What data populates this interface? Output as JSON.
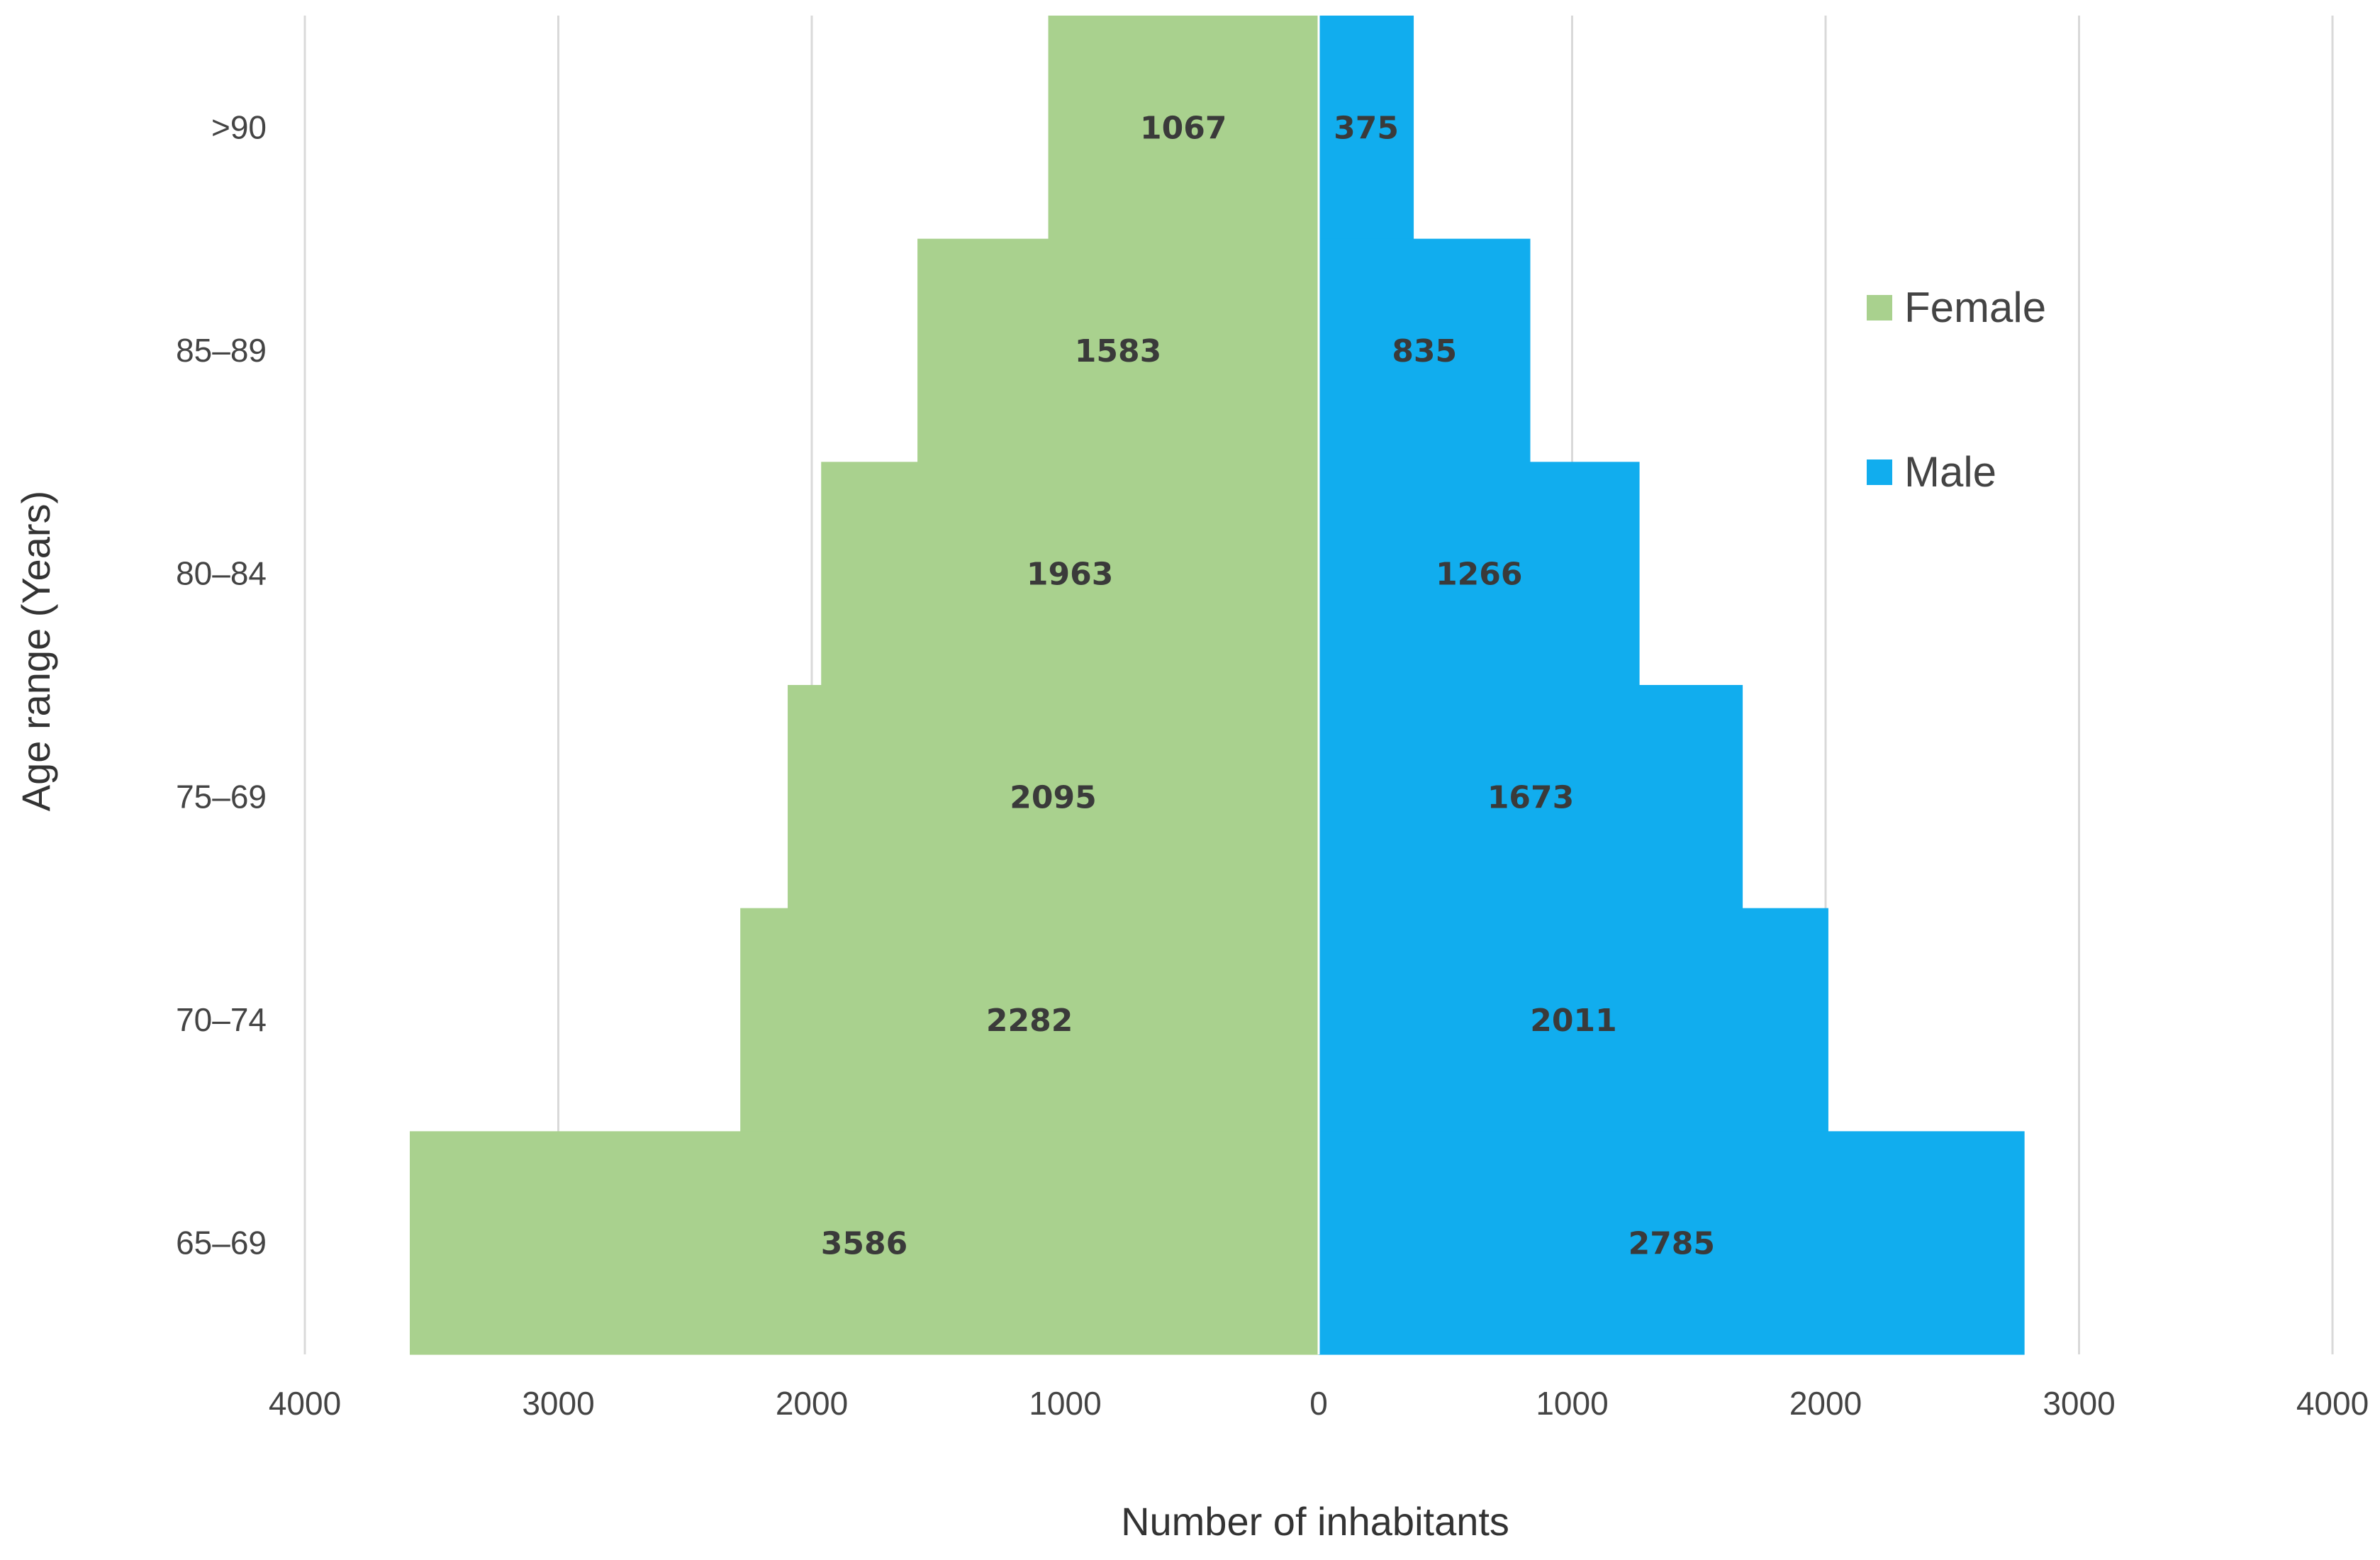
{
  "chart_data": {
    "type": "bar",
    "orientation": "horizontal",
    "categories": [
      ">90",
      "85–89",
      "80–84",
      "75–69",
      "70–74",
      "65–69"
    ],
    "series": [
      {
        "name": "Female",
        "values": [
          1067,
          1583,
          1963,
          2095,
          2282,
          3586
        ],
        "color": "#a9d18e",
        "direction": "left"
      },
      {
        "name": "Male",
        "values": [
          375,
          835,
          1266,
          1673,
          2011,
          2785
        ],
        "color": "#11adee",
        "direction": "right"
      }
    ],
    "xlabel": "Number of inhabitants",
    "ylabel": "Age range (Years)",
    "xlim": [
      -4000,
      4000
    ],
    "x_ticks": [
      -4000,
      -3000,
      -2000,
      -1000,
      0,
      1000,
      2000,
      3000,
      4000
    ],
    "x_tick_labels": [
      "4000",
      "3000",
      "2000",
      "1000",
      "0",
      "1000",
      "2000",
      "3000",
      "4000"
    ],
    "grid": "vertical",
    "legend_position": "right",
    "gap_width": 0
  }
}
